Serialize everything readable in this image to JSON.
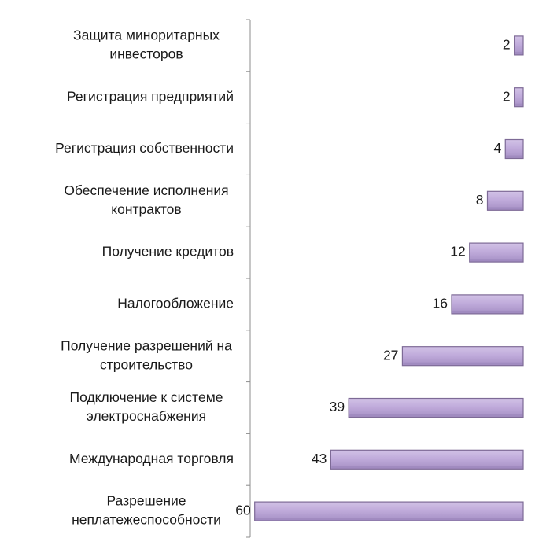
{
  "chart_data": {
    "type": "bar",
    "orientation": "horizontal",
    "reversed_value_axis": true,
    "categories": [
      [
        "Защита миноритарных",
        "инвесторов"
      ],
      [
        "Регистрация предприятий"
      ],
      [
        "Регистрация собственности"
      ],
      [
        "Обеспечение исполнения",
        "контрактов"
      ],
      [
        "Получение кредитов"
      ],
      [
        "Налогообложение"
      ],
      [
        "Получение разрешений на",
        "строительство"
      ],
      [
        "Подключение к системе",
        "электроснабжения"
      ],
      [
        "Международная торговля"
      ],
      [
        "Разрешение",
        "неплатежеспособности"
      ]
    ],
    "values": [
      2,
      2,
      4,
      8,
      12,
      16,
      27,
      39,
      43,
      60
    ],
    "data_labels": [
      "2",
      "2",
      "4",
      "8",
      "12",
      "16",
      "27",
      "39",
      "43",
      "60"
    ],
    "xlim": [
      0,
      61
    ],
    "bar_color": "#c0abdb",
    "bar_edge_color": "#7d6a96",
    "axis_color": "#8c8c8c",
    "grid": false,
    "legend": "none",
    "title": "",
    "xlabel": "",
    "ylabel": ""
  }
}
